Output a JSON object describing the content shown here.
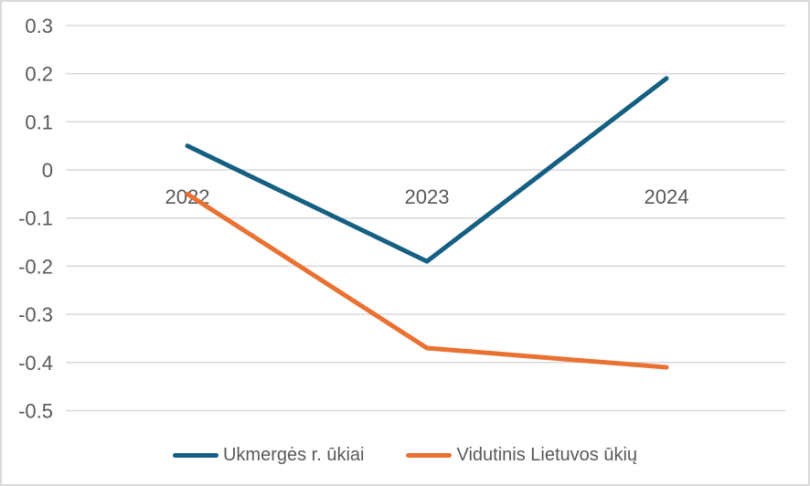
{
  "chart_data": {
    "type": "line",
    "title": "",
    "xlabel": "",
    "ylabel": "",
    "categories": [
      "2022",
      "2023",
      "2024"
    ],
    "series": [
      {
        "name": "Ukmergės r. ūkiai",
        "values": [
          0.05,
          -0.19,
          0.19
        ],
        "color": "#156082"
      },
      {
        "name": "Vidutinis Lietuvos ūkių",
        "values": [
          -0.05,
          -0.37,
          -0.41
        ],
        "color": "#E97132"
      }
    ],
    "ylim": [
      -0.5,
      0.3
    ],
    "ytick_step": 0.1,
    "ytick_labels": [
      "0.3",
      "0.2",
      "0.1",
      "0",
      "-0.1",
      "-0.2",
      "-0.3",
      "-0.4",
      "-0.5"
    ],
    "ytick_values": [
      0.3,
      0.2,
      0.1,
      0,
      -0.1,
      -0.2,
      -0.3,
      -0.4,
      -0.5
    ],
    "grid": true,
    "legend_position": "bottom"
  },
  "style": {
    "grid_color": "#d9d9d9",
    "border_color": "#d9d9d9",
    "label_color": "#595959",
    "background": "#ffffff",
    "axis_font_size": 22,
    "line_width": 5
  }
}
